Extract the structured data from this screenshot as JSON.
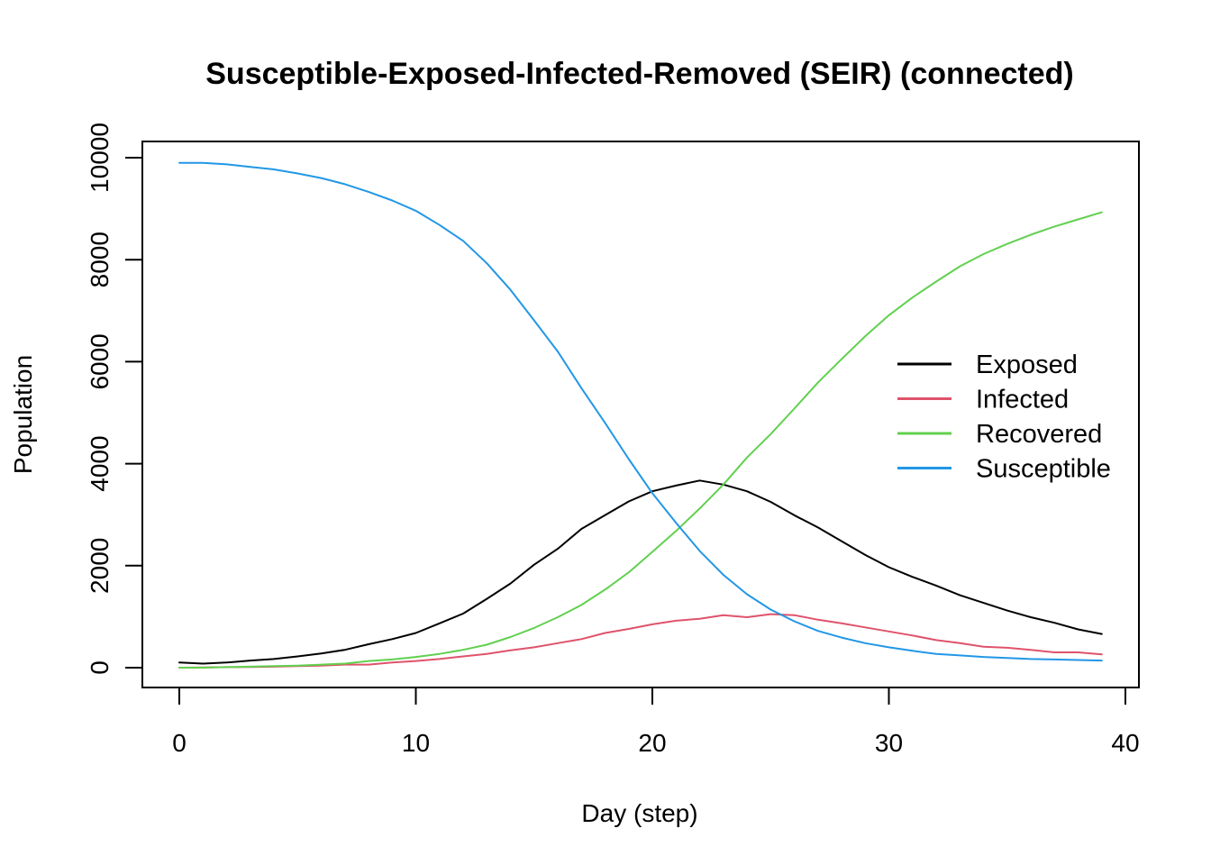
{
  "chart_data": {
    "type": "line",
    "title": "Susceptible-Exposed-Infected-Removed (SEIR) (connected)",
    "xlabel": "Day (step)",
    "ylabel": "Population",
    "xlim": [
      0,
      40
    ],
    "ylim": [
      0,
      10000
    ],
    "x_ticks": [
      "0",
      "10",
      "20",
      "30",
      "40"
    ],
    "y_ticks": [
      "0",
      "2000",
      "4000",
      "6000",
      "8000",
      "10000"
    ],
    "grid": false,
    "legend_position": "right",
    "x": [
      0,
      1,
      2,
      3,
      4,
      5,
      6,
      7,
      8,
      9,
      10,
      11,
      12,
      13,
      14,
      15,
      16,
      17,
      18,
      19,
      20,
      21,
      22,
      23,
      24,
      25,
      26,
      27,
      28,
      29,
      30,
      31,
      32,
      33,
      34,
      35,
      36,
      37,
      38,
      39
    ],
    "series": [
      {
        "name": "Exposed",
        "color": "#000000",
        "values": [
          100,
          80,
          100,
          140,
          170,
          220,
          280,
          350,
          460,
          560,
          680,
          870,
          1060,
          1350,
          1650,
          2020,
          2330,
          2720,
          2990,
          3260,
          3460,
          3570,
          3670,
          3590,
          3460,
          3250,
          2990,
          2750,
          2480,
          2210,
          1970,
          1780,
          1610,
          1420,
          1270,
          1120,
          990,
          880,
          750,
          660
        ]
      },
      {
        "name": "Infected",
        "color": "#DF536B",
        "values": [
          0,
          5,
          10,
          15,
          20,
          30,
          40,
          60,
          60,
          100,
          130,
          170,
          220,
          270,
          340,
          400,
          480,
          560,
          680,
          760,
          850,
          920,
          960,
          1030,
          990,
          1050,
          1030,
          940,
          870,
          790,
          710,
          630,
          540,
          480,
          410,
          390,
          350,
          300,
          300,
          260
        ]
      },
      {
        "name": "Recovered",
        "color": "#61D04F",
        "values": [
          0,
          0,
          10,
          20,
          30,
          40,
          60,
          80,
          130,
          160,
          210,
          270,
          350,
          450,
          600,
          780,
          990,
          1230,
          1530,
          1870,
          2270,
          2680,
          3120,
          3590,
          4120,
          4580,
          5080,
          5590,
          6050,
          6500,
          6910,
          7260,
          7570,
          7870,
          8110,
          8310,
          8490,
          8650,
          8790,
          8930
        ]
      },
      {
        "name": "Susceptible",
        "color": "#2297E6",
        "values": [
          9900,
          9900,
          9870,
          9820,
          9770,
          9690,
          9600,
          9480,
          9330,
          9160,
          8960,
          8680,
          8370,
          7930,
          7410,
          6810,
          6200,
          5480,
          4800,
          4090,
          3420,
          2840,
          2290,
          1820,
          1440,
          1140,
          910,
          720,
          590,
          480,
          400,
          330,
          270,
          240,
          210,
          190,
          170,
          160,
          150,
          140
        ]
      }
    ]
  }
}
